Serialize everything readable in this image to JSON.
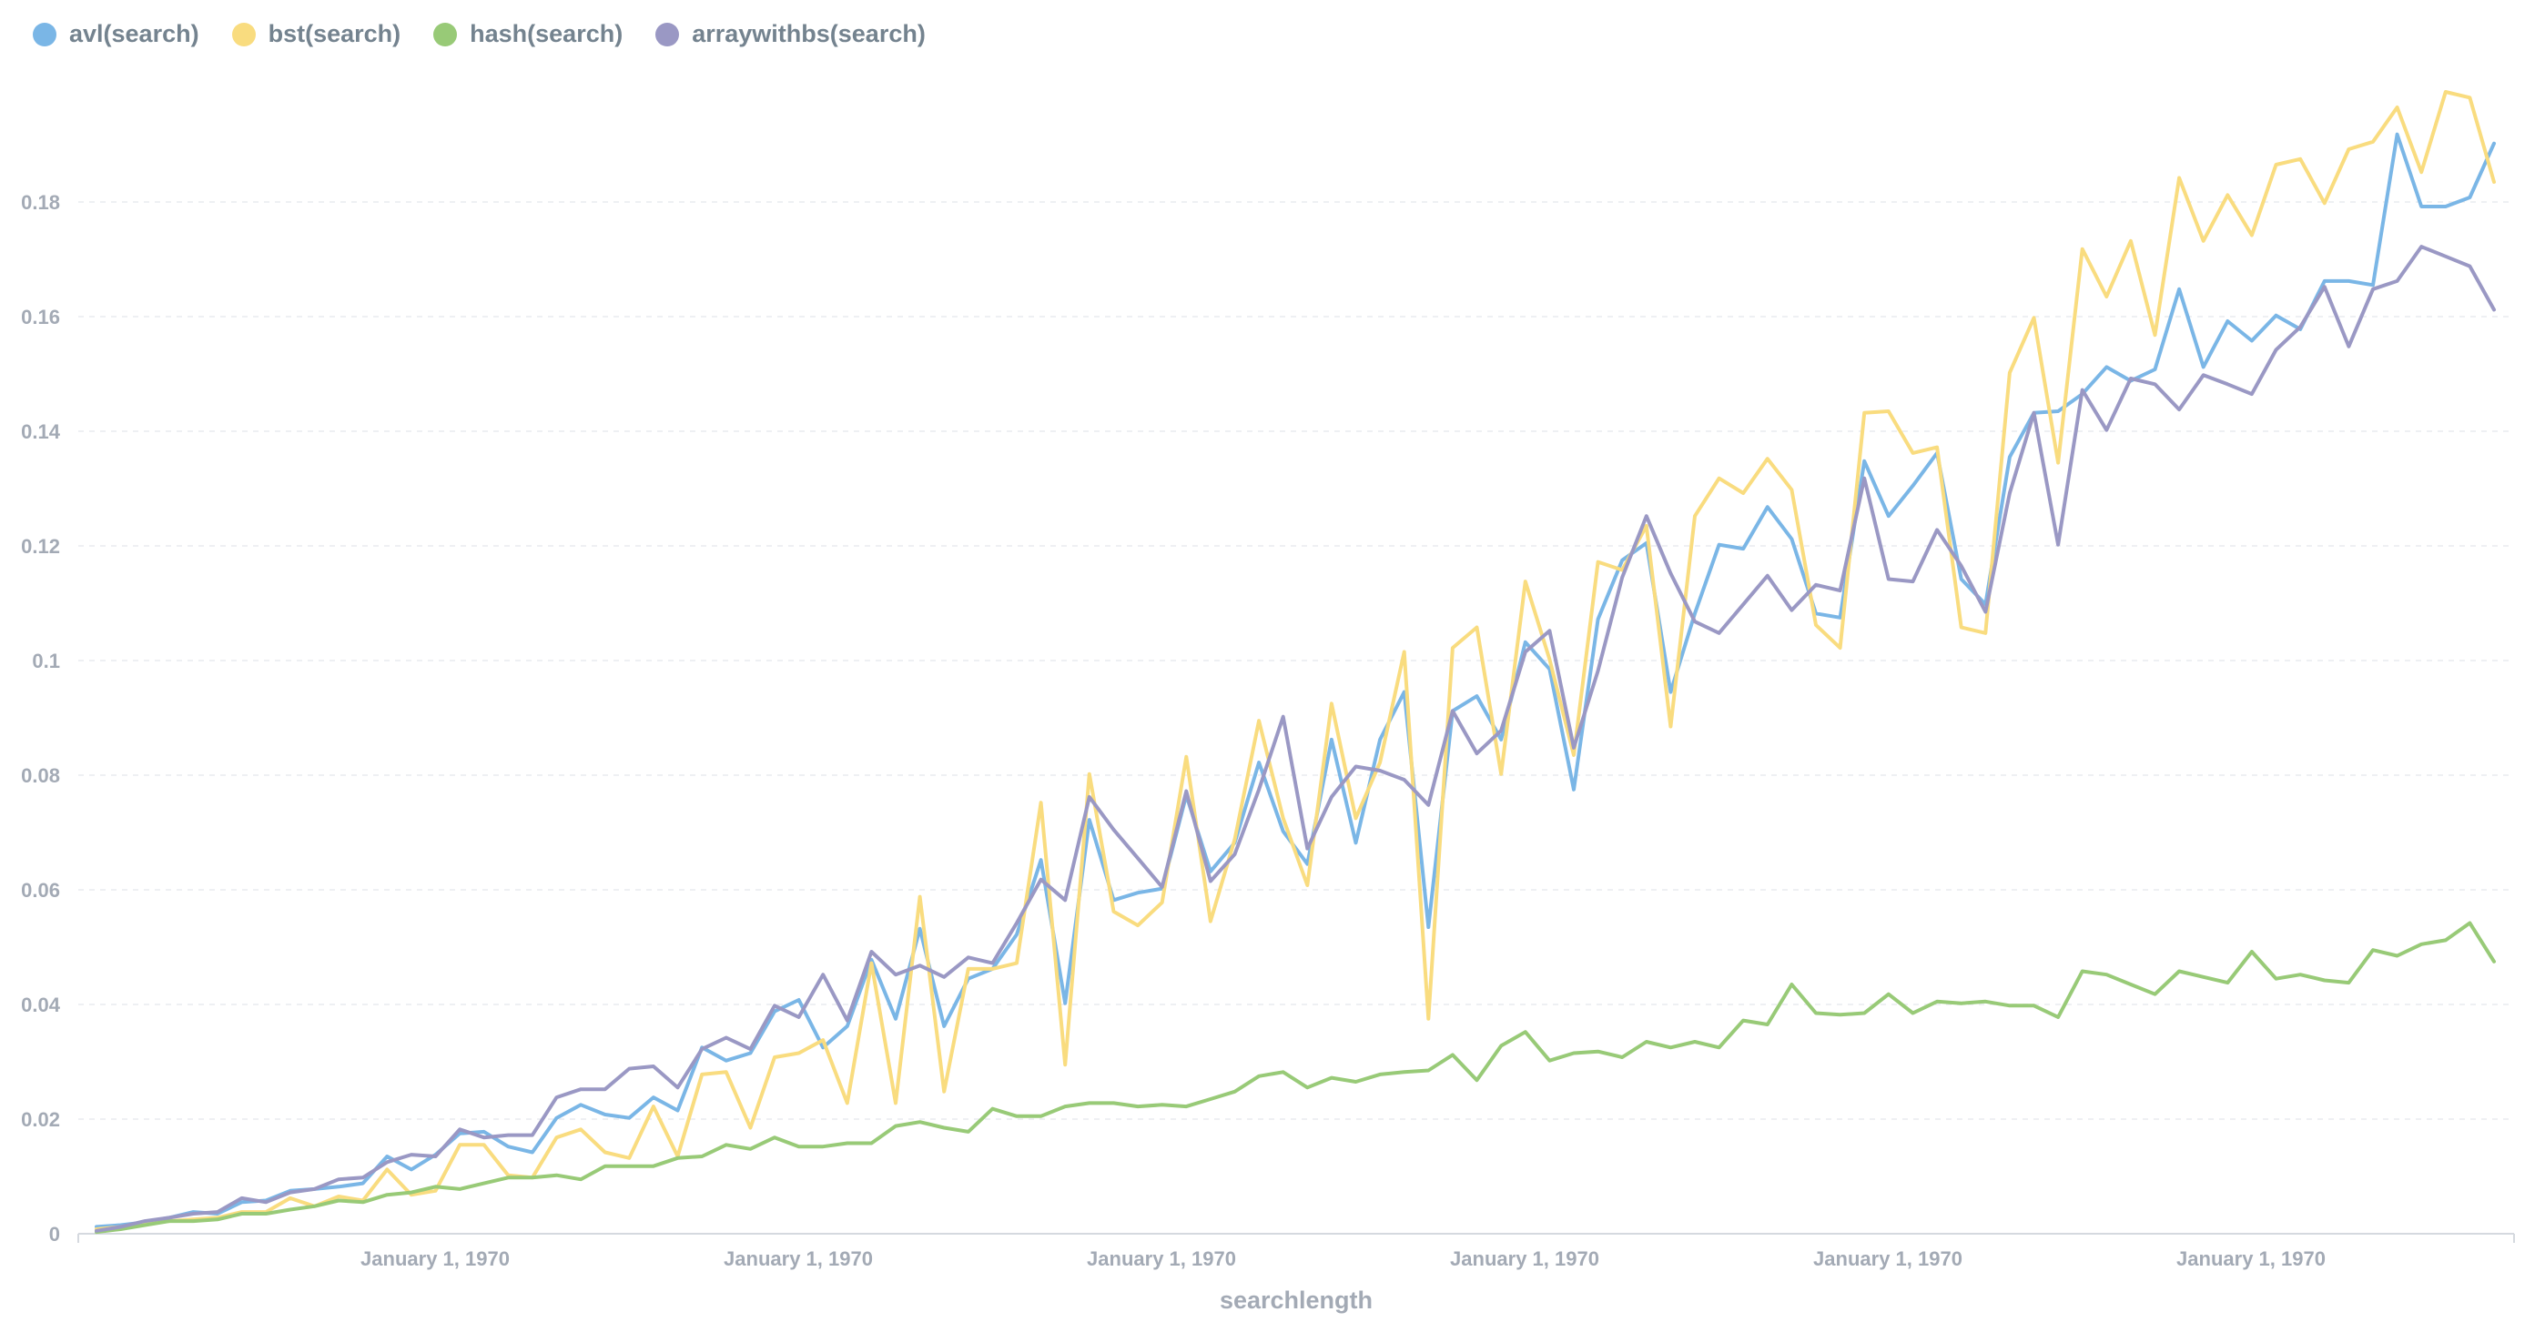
{
  "legend": [
    {
      "label": "avl(search)",
      "color": "#7ab6e6"
    },
    {
      "label": "bst(search)",
      "color": "#f9dc7f"
    },
    {
      "label": "hash(search)",
      "color": "#98ca77"
    },
    {
      "label": "arraywithbs(search)",
      "color": "#9a98c4"
    }
  ],
  "chart_data": {
    "type": "line",
    "xlabel": "searchlength",
    "ylabel": "",
    "ylim": [
      0,
      0.2
    ],
    "grid": true,
    "legend_position": "top-left",
    "y_ticks": [
      "0",
      "0.02",
      "0.04",
      "0.06",
      "0.08",
      "0.1",
      "0.12",
      "0.14",
      "0.16",
      "0.18"
    ],
    "x_tick_labels": [
      "January 1, 1970",
      "January 1, 1970",
      "January 1, 1970",
      "January 1, 1970",
      "January 1, 1970",
      "January 1, 1970"
    ],
    "x": [
      1,
      2,
      3,
      4,
      5,
      6,
      7,
      8,
      9,
      10,
      11,
      12,
      13,
      14,
      15,
      16,
      17,
      18,
      19,
      20,
      21,
      22,
      23,
      24,
      25,
      26,
      27,
      28,
      29,
      30,
      31,
      32,
      33,
      34,
      35,
      36,
      37,
      38,
      39,
      40,
      41,
      42,
      43,
      44,
      45,
      46,
      47,
      48,
      49,
      50,
      51,
      52,
      53,
      54,
      55,
      56,
      57,
      58,
      59,
      60,
      61,
      62,
      63,
      64,
      65,
      66,
      67,
      68,
      69,
      70,
      71,
      72,
      73,
      74,
      75,
      76,
      77,
      78,
      79,
      80,
      81,
      82,
      83,
      84,
      85,
      86,
      87,
      88,
      89,
      90,
      91,
      92,
      93,
      94,
      95,
      96,
      97,
      98,
      99,
      100
    ],
    "series": [
      {
        "name": "avl(search)",
        "color": "#7ab6e6",
        "values": [
          0.0012,
          0.0015,
          0.002,
          0.0028,
          0.0038,
          0.0035,
          0.0055,
          0.0058,
          0.0075,
          0.0078,
          0.0082,
          0.0088,
          0.0135,
          0.0112,
          0.0138,
          0.0175,
          0.0178,
          0.0152,
          0.0142,
          0.0202,
          0.0225,
          0.0208,
          0.0202,
          0.0238,
          0.0215,
          0.0325,
          0.0302,
          0.0315,
          0.0388,
          0.0408,
          0.0325,
          0.0362,
          0.0478,
          0.0375,
          0.0532,
          0.0362,
          0.0445,
          0.0462,
          0.0522,
          0.0652,
          0.0402,
          0.0722,
          0.0582,
          0.0595,
          0.0602,
          0.0765,
          0.0632,
          0.0682,
          0.0822,
          0.0702,
          0.0645,
          0.0862,
          0.0682,
          0.0862,
          0.0945,
          0.0535,
          0.0912,
          0.0938,
          0.0862,
          0.1032,
          0.0985,
          0.0775,
          0.1072,
          0.1175,
          0.1205,
          0.0945,
          0.1082,
          0.1202,
          0.1195,
          0.1268,
          0.1212,
          0.1082,
          0.1075,
          0.1348,
          0.1252,
          0.1305,
          0.1362,
          0.1142,
          0.1098,
          0.1355,
          0.1432,
          0.1435,
          0.1465,
          0.1512,
          0.1488,
          0.1508,
          0.1648,
          0.1512,
          0.1592,
          0.1558,
          0.1602,
          0.1578,
          0.1662,
          0.1662,
          0.1655,
          0.1918,
          0.1792,
          0.1792,
          0.1808,
          0.1902
        ]
      },
      {
        "name": "bst(search)",
        "color": "#f9dc7f",
        "values": [
          0.0008,
          0.0012,
          0.0018,
          0.0022,
          0.0025,
          0.0028,
          0.0038,
          0.0038,
          0.0062,
          0.0048,
          0.0065,
          0.0058,
          0.0112,
          0.0068,
          0.0075,
          0.0155,
          0.0155,
          0.0102,
          0.0098,
          0.0168,
          0.0182,
          0.0142,
          0.0132,
          0.0222,
          0.0135,
          0.0278,
          0.0282,
          0.0185,
          0.0308,
          0.0315,
          0.0338,
          0.0228,
          0.0472,
          0.0228,
          0.0588,
          0.0248,
          0.0462,
          0.0462,
          0.0472,
          0.0752,
          0.0295,
          0.0802,
          0.0562,
          0.0538,
          0.0578,
          0.0832,
          0.0545,
          0.0688,
          0.0895,
          0.0725,
          0.0608,
          0.0925,
          0.0725,
          0.0822,
          0.1015,
          0.0375,
          0.1022,
          0.1058,
          0.0802,
          0.1138,
          0.1002,
          0.0835,
          0.1172,
          0.1158,
          0.1235,
          0.0885,
          0.1252,
          0.1318,
          0.1292,
          0.1352,
          0.1298,
          0.1062,
          0.1022,
          0.1432,
          0.1435,
          0.1362,
          0.1372,
          0.1058,
          0.1048,
          0.1502,
          0.1598,
          0.1345,
          0.1718,
          0.1635,
          0.1732,
          0.1568,
          0.1842,
          0.1732,
          0.1812,
          0.1742,
          0.1865,
          0.1875,
          0.1798,
          0.1892,
          0.1905,
          0.1965,
          0.1852,
          0.1992,
          0.1982,
          0.1835
        ]
      },
      {
        "name": "hash(search)",
        "color": "#98ca77",
        "values": [
          0.0003,
          0.0008,
          0.0015,
          0.0022,
          0.0022,
          0.0025,
          0.0035,
          0.0035,
          0.0042,
          0.0048,
          0.0058,
          0.0055,
          0.0068,
          0.0072,
          0.0082,
          0.0078,
          0.0088,
          0.0098,
          0.0098,
          0.0102,
          0.0095,
          0.0118,
          0.0118,
          0.0118,
          0.0132,
          0.0135,
          0.0155,
          0.0148,
          0.0168,
          0.0152,
          0.0152,
          0.0158,
          0.0158,
          0.0188,
          0.0195,
          0.0185,
          0.0178,
          0.0218,
          0.0205,
          0.0205,
          0.0222,
          0.0228,
          0.0228,
          0.0222,
          0.0225,
          0.0222,
          0.0235,
          0.0248,
          0.0275,
          0.0282,
          0.0255,
          0.0272,
          0.0265,
          0.0278,
          0.0282,
          0.0285,
          0.0312,
          0.0268,
          0.0328,
          0.0352,
          0.0302,
          0.0315,
          0.0318,
          0.0308,
          0.0335,
          0.0325,
          0.0335,
          0.0325,
          0.0372,
          0.0365,
          0.0435,
          0.0385,
          0.0382,
          0.0385,
          0.0418,
          0.0385,
          0.0405,
          0.0402,
          0.0405,
          0.0398,
          0.0398,
          0.0378,
          0.0458,
          0.0452,
          0.0435,
          0.0418,
          0.0458,
          0.0448,
          0.0438,
          0.0492,
          0.0445,
          0.0452,
          0.0442,
          0.0438,
          0.0495,
          0.0485,
          0.0505,
          0.0512,
          0.0542,
          0.0475
        ]
      },
      {
        "name": "arraywithbs(search)",
        "color": "#9a98c4",
        "values": [
          0.0005,
          0.0012,
          0.0022,
          0.0028,
          0.0035,
          0.0038,
          0.0062,
          0.0055,
          0.0072,
          0.0078,
          0.0095,
          0.0098,
          0.0125,
          0.0138,
          0.0135,
          0.0182,
          0.0168,
          0.0172,
          0.0172,
          0.0238,
          0.0252,
          0.0252,
          0.0288,
          0.0292,
          0.0255,
          0.0322,
          0.0342,
          0.0322,
          0.0398,
          0.0378,
          0.0452,
          0.0372,
          0.0492,
          0.0452,
          0.0468,
          0.0448,
          0.0482,
          0.0472,
          0.0542,
          0.0618,
          0.0582,
          0.0762,
          0.0705,
          0.0655,
          0.0605,
          0.0772,
          0.0615,
          0.0662,
          0.0775,
          0.0902,
          0.0672,
          0.0762,
          0.0815,
          0.0808,
          0.0792,
          0.0748,
          0.0912,
          0.0838,
          0.0878,
          0.1015,
          0.1052,
          0.0848,
          0.0982,
          0.1145,
          0.1252,
          0.1152,
          0.1068,
          0.1048,
          0.1098,
          0.1148,
          0.1088,
          0.1132,
          0.1122,
          0.1318,
          0.1142,
          0.1138,
          0.1228,
          0.1165,
          0.1085,
          0.1292,
          0.1432,
          0.1202,
          0.1472,
          0.1402,
          0.1492,
          0.1482,
          0.1438,
          0.1498,
          0.1482,
          0.1465,
          0.1542,
          0.1582,
          0.1652,
          0.1548,
          0.1648,
          0.1662,
          0.1722,
          0.1705,
          0.1688,
          0.1612
        ]
      }
    ]
  }
}
